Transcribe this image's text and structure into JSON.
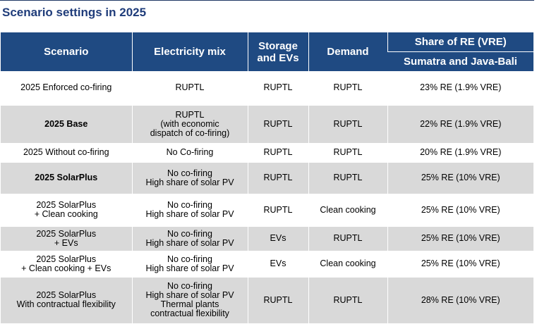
{
  "title": "Scenario settings in 2025",
  "table": {
    "headers": {
      "scenario": "Scenario",
      "electricity_mix": "Electricity mix",
      "storage_evs": "Storage\nand EVs",
      "demand": "Demand",
      "share_re": "Share of RE (VRE)",
      "share_re_sub": "Sumatra and Java-Bali"
    },
    "rows": [
      {
        "scenario": "2025 Enforced co-firing",
        "mix": "RUPTL",
        "storage": "RUPTL",
        "demand": "RUPTL",
        "share": "23% RE (1.9% VRE)"
      },
      {
        "scenario": "2025 Base",
        "mix": "RUPTL\n(with economic\ndispatch of co-firing)",
        "storage": "RUPTL",
        "demand": "RUPTL",
        "share": "22% RE (1.9% VRE)"
      },
      {
        "scenario": "2025 Without co-firing",
        "mix": "No Co-firing",
        "storage": "RUPTL",
        "demand": "RUPTL",
        "share": "20% RE (1.9% VRE)"
      },
      {
        "scenario": "2025 SolarPlus",
        "mix": "No co-firing\nHigh share of solar PV",
        "storage": "RUPTL",
        "demand": "RUPTL",
        "share": "25% RE (10% VRE)"
      },
      {
        "scenario": "2025 SolarPlus\n+ Clean cooking",
        "mix": "No co-firing\nHigh share of solar PV",
        "storage": "RUPTL",
        "demand": "Clean cooking",
        "share": "25% RE (10% VRE)"
      },
      {
        "scenario": "2025 SolarPlus\n+ EVs",
        "mix": "No co-firing\nHigh share of solar PV",
        "storage": "EVs",
        "demand": "RUPTL",
        "share": "25% RE (10% VRE)"
      },
      {
        "scenario": "2025 SolarPlus\n+ Clean cooking + EVs",
        "mix": "No co-firing\nHigh share of solar PV",
        "storage": "EVs",
        "demand": "Clean cooking",
        "share": "25% RE (10% VRE)"
      },
      {
        "scenario": "2025 SolarPlus\nWith contractual flexibility",
        "mix": "No co-firing\nHigh share of solar PV\nThermal plants\ncontractual flexibility",
        "storage": "RUPTL",
        "demand": "RUPTL",
        "share": "28% RE (10% VRE)"
      }
    ]
  }
}
